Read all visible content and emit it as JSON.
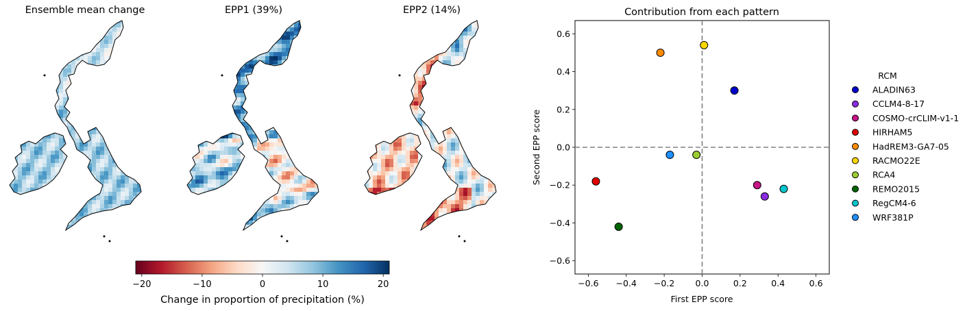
{
  "maps": [
    {
      "title": "Ensemble mean change",
      "pattern": "mean"
    },
    {
      "title": "EPP1 (39%)",
      "pattern": "epp1"
    },
    {
      "title": "EPP2 (14%)",
      "pattern": "epp2"
    }
  ],
  "colorbar": {
    "label": "Change in proportion of precipitation (%)",
    "ticks": [
      -20,
      -10,
      0,
      10,
      20
    ],
    "range": [
      -21,
      21
    ],
    "colors": [
      "#67001f",
      "#b2182b",
      "#d6604d",
      "#f4a582",
      "#fddbc7",
      "#f7f7f7",
      "#d1e5f0",
      "#92c5de",
      "#4393c3",
      "#2166ac",
      "#053061"
    ]
  },
  "chart_data": {
    "type": "scatter",
    "title": "Contribution from each pattern",
    "xlabel": "First EPP score",
    "ylabel": "Second EPP score",
    "xlim": [
      -0.67,
      0.67
    ],
    "ylim": [
      -0.67,
      0.67
    ],
    "xticks": [
      -0.6,
      -0.4,
      -0.2,
      0.0,
      0.2,
      0.4,
      0.6
    ],
    "yticks": [
      -0.6,
      -0.4,
      -0.2,
      0.0,
      0.2,
      0.4,
      0.6
    ],
    "reference_lines": {
      "x": 0,
      "y": 0,
      "style": "dashed",
      "color": "#808080"
    },
    "legend": {
      "title": "RCM",
      "placement": "right, outside"
    },
    "series": [
      {
        "name": "ALADIN63",
        "color": "#0000cc",
        "x": 0.17,
        "y": 0.3
      },
      {
        "name": "CCLM4-8-17",
        "color": "#8a2be2",
        "x": 0.33,
        "y": -0.26
      },
      {
        "name": "COSMO-crCLIM-v1-1",
        "color": "#c71585",
        "x": 0.29,
        "y": -0.2
      },
      {
        "name": "HIRHAM5",
        "color": "#e00000",
        "x": -0.56,
        "y": -0.18
      },
      {
        "name": "HadREM3-GA7-05",
        "color": "#ff8c00",
        "x": -0.22,
        "y": 0.5
      },
      {
        "name": "RACMO22E",
        "color": "#ffd700",
        "x": 0.01,
        "y": 0.54
      },
      {
        "name": "RCA4",
        "color": "#9acd32",
        "x": -0.03,
        "y": -0.04
      },
      {
        "name": "REMO2015",
        "color": "#006400",
        "x": -0.44,
        "y": -0.42
      },
      {
        "name": "RegCM4-6",
        "color": "#00c5cd",
        "x": 0.43,
        "y": -0.22
      },
      {
        "name": "WRF381P",
        "color": "#1e90ff",
        "x": -0.17,
        "y": -0.04
      }
    ]
  }
}
